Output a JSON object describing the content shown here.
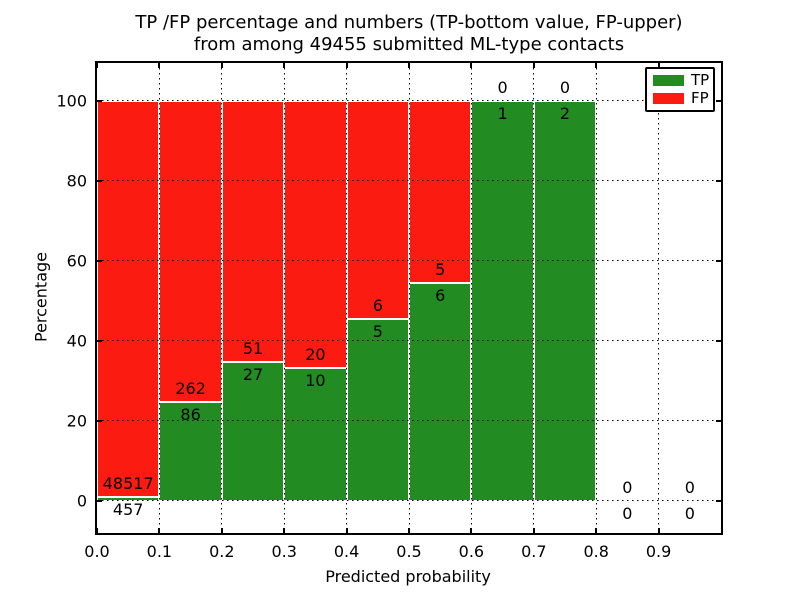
{
  "figure": {
    "title_line1": "TP /FP percentage and numbers (TP-bottom value, FP-upper)",
    "title_line2": "from among 49455 submitted ML-type contacts",
    "xlabel": "Predicted probability",
    "ylabel": "Percentage"
  },
  "colors": {
    "tp_green": "#228b22",
    "fp_red": "#fb1b10",
    "grid": "#000000",
    "spine": "#000000",
    "background": "#ffffff"
  },
  "chart_data": {
    "type": "bar",
    "subtype": "stacked-percentage-histogram",
    "title": "TP /FP percentage and numbers (TP-bottom value, FP-upper)\nfrom among 49455 submitted ML-type contacts",
    "xlabel": "Predicted probability",
    "ylabel": "Percentage",
    "total_contacts": 49455,
    "xlim": [
      0.0,
      1.0
    ],
    "ylim": [
      -8,
      109.4
    ],
    "bar_width": 0.1,
    "grid_style": "dotted",
    "grid_x_values": [
      0.1,
      0.2,
      0.3,
      0.4,
      0.5,
      0.6,
      0.7,
      0.8,
      0.9
    ],
    "grid_y_values": [
      0,
      20,
      40,
      60,
      80,
      100
    ],
    "x_tick_labels": [
      "0.0",
      "0.1",
      "0.2",
      "0.3",
      "0.4",
      "0.5",
      "0.6",
      "0.7",
      "0.8",
      "0.9"
    ],
    "y_tick_labels": [
      "0",
      "20",
      "40",
      "60",
      "80",
      "100"
    ],
    "legend": {
      "position": "upper-right",
      "items": [
        {
          "label": "TP",
          "color": "#228b22"
        },
        {
          "label": "FP",
          "color": "#fb1b10"
        }
      ]
    },
    "bins": [
      {
        "x_start": 0.0,
        "x_end": 0.1,
        "tp": 457,
        "fp": 48517,
        "tp_percent": 0.93
      },
      {
        "x_start": 0.1,
        "x_end": 0.2,
        "tp": 86,
        "fp": 262,
        "tp_percent": 24.71
      },
      {
        "x_start": 0.2,
        "x_end": 0.3,
        "tp": 27,
        "fp": 51,
        "tp_percent": 34.62
      },
      {
        "x_start": 0.3,
        "x_end": 0.4,
        "tp": 10,
        "fp": 20,
        "tp_percent": 33.33
      },
      {
        "x_start": 0.4,
        "x_end": 0.5,
        "tp": 5,
        "fp": 6,
        "tp_percent": 45.45
      },
      {
        "x_start": 0.5,
        "x_end": 0.6,
        "tp": 6,
        "fp": 5,
        "tp_percent": 54.55
      },
      {
        "x_start": 0.6,
        "x_end": 0.7,
        "tp": 1,
        "fp": 0,
        "tp_percent": 100
      },
      {
        "x_start": 0.7,
        "x_end": 0.8,
        "tp": 2,
        "fp": 0,
        "tp_percent": 100
      },
      {
        "x_start": 0.8,
        "x_end": 0.9,
        "tp": 0,
        "fp": 0,
        "tp_percent": 0
      },
      {
        "x_start": 0.9,
        "x_end": 1.0,
        "tp": 0,
        "fp": 0,
        "tp_percent": 0
      }
    ]
  }
}
